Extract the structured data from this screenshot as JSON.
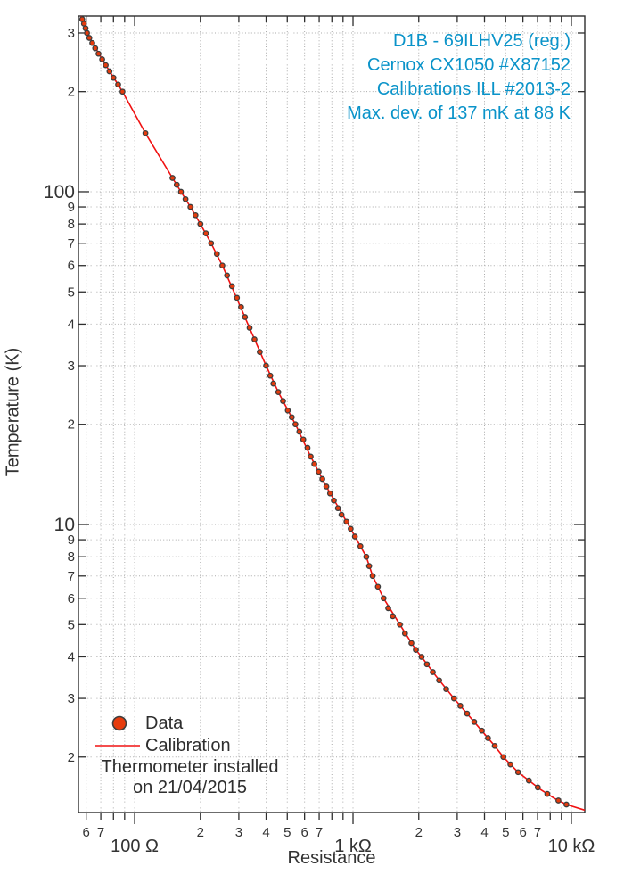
{
  "title_block": {
    "color": "#0a93c9",
    "lines": [
      "D1B - 69ILHV25 (reg.)",
      "Cernox CX1050 #X87152",
      "Calibrations ILL #2013-2",
      "Max. dev. of 137 mK at 88 K"
    ]
  },
  "axes": {
    "x_label": "Resistance",
    "y_label": "Temperature (K)"
  },
  "legend": {
    "data_label": "Data",
    "calibration_label": "Calibration",
    "note_line1": "Thermometer installed",
    "note_line2": "on 21/04/2015"
  },
  "chart_data": {
    "type": "scatter",
    "xscale": "log",
    "yscale": "log",
    "xlabel": "Resistance",
    "ylabel": "Temperature (K)",
    "xunit": "Ω",
    "yunit": "K",
    "xlim_ohm": [
      55.3,
      11515
    ],
    "ylim_K": [
      1.362,
      337.3
    ],
    "grid": "dotted",
    "grid_color": "#ababab",
    "frame_color": "#2e2e2e",
    "x_ticks": [
      {
        "v": 60,
        "l": "6"
      },
      {
        "v": 70,
        "l": "7"
      },
      {
        "v": 80,
        "l": ""
      },
      {
        "v": 90,
        "l": ""
      },
      {
        "v": 100,
        "l": "100 Ω",
        "major": true
      },
      {
        "v": 200,
        "l": "2"
      },
      {
        "v": 300,
        "l": "3"
      },
      {
        "v": 400,
        "l": "4"
      },
      {
        "v": 500,
        "l": "5"
      },
      {
        "v": 600,
        "l": "6"
      },
      {
        "v": 700,
        "l": "7"
      },
      {
        "v": 800,
        "l": ""
      },
      {
        "v": 900,
        "l": ""
      },
      {
        "v": 1000,
        "l": "1 kΩ",
        "major": true
      },
      {
        "v": 2000,
        "l": "2"
      },
      {
        "v": 3000,
        "l": "3"
      },
      {
        "v": 4000,
        "l": "4"
      },
      {
        "v": 5000,
        "l": "5"
      },
      {
        "v": 6000,
        "l": "6"
      },
      {
        "v": 7000,
        "l": "7"
      },
      {
        "v": 8000,
        "l": ""
      },
      {
        "v": 9000,
        "l": ""
      },
      {
        "v": 10000,
        "l": "10 kΩ",
        "major": true
      }
    ],
    "y_ticks": [
      {
        "v": 300,
        "l": "3"
      },
      {
        "v": 200,
        "l": "2"
      },
      {
        "v": 100,
        "l": "100",
        "major": true
      },
      {
        "v": 90,
        "l": "9"
      },
      {
        "v": 80,
        "l": "8"
      },
      {
        "v": 70,
        "l": "7"
      },
      {
        "v": 60,
        "l": "6"
      },
      {
        "v": 50,
        "l": "5"
      },
      {
        "v": 40,
        "l": "4"
      },
      {
        "v": 30,
        "l": "3"
      },
      {
        "v": 20,
        "l": "2"
      },
      {
        "v": 10,
        "l": "10",
        "major": true
      },
      {
        "v": 9,
        "l": "9"
      },
      {
        "v": 8,
        "l": "8"
      },
      {
        "v": 7,
        "l": "7"
      },
      {
        "v": 6,
        "l": "6"
      },
      {
        "v": 5,
        "l": "5"
      },
      {
        "v": 4,
        "l": "4"
      },
      {
        "v": 3,
        "l": "3"
      },
      {
        "v": 2,
        "l": "2"
      }
    ],
    "series": [
      {
        "name": "Data",
        "style": "markers",
        "marker_color": "#e63b0d",
        "marker_edge_color": "#3d3d3d",
        "points_R_T": [
          [
            57.5,
            330
          ],
          [
            58.6,
            320
          ],
          [
            59.6,
            310
          ],
          [
            60.5,
            300
          ],
          [
            62,
            290
          ],
          [
            64,
            280
          ],
          [
            66,
            270
          ],
          [
            68.3,
            260
          ],
          [
            71,
            250
          ],
          [
            73.7,
            240
          ],
          [
            76.7,
            230
          ],
          [
            80,
            220
          ],
          [
            84,
            210
          ],
          [
            88,
            200
          ],
          [
            112,
            150
          ],
          [
            149,
            110
          ],
          [
            156,
            105
          ],
          [
            163,
            100
          ],
          [
            171,
            95
          ],
          [
            180,
            90
          ],
          [
            190,
            85
          ],
          [
            200,
            80
          ],
          [
            212,
            75
          ],
          [
            224,
            70
          ],
          [
            238,
            65
          ],
          [
            252,
            60
          ],
          [
            265,
            56
          ],
          [
            279,
            52
          ],
          [
            294,
            48
          ],
          [
            307,
            45
          ],
          [
            320,
            42
          ],
          [
            336,
            39
          ],
          [
            354,
            36
          ],
          [
            374,
            33
          ],
          [
            400,
            30
          ],
          [
            418,
            28
          ],
          [
            432,
            26.5
          ],
          [
            455,
            25
          ],
          [
            478,
            23.5
          ],
          [
            503,
            22
          ],
          [
            524,
            21
          ],
          [
            545,
            20
          ],
          [
            568,
            19
          ],
          [
            592,
            18
          ],
          [
            619,
            17
          ],
          [
            640,
            16
          ],
          [
            665,
            15.2
          ],
          [
            696,
            14.4
          ],
          [
            724,
            13.7
          ],
          [
            755,
            13
          ],
          [
            785,
            12.4
          ],
          [
            817,
            11.8
          ],
          [
            853,
            11.2
          ],
          [
            886,
            10.7
          ],
          [
            934,
            10.2
          ],
          [
            976,
            9.7
          ],
          [
            1020,
            9.2
          ],
          [
            1081,
            8.6
          ],
          [
            1150,
            8
          ],
          [
            1185,
            7.5
          ],
          [
            1230,
            7
          ],
          [
            1300,
            6.5
          ],
          [
            1380,
            6
          ],
          [
            1450,
            5.6
          ],
          [
            1520,
            5.3
          ],
          [
            1640,
            5.0
          ],
          [
            1730,
            4.7
          ],
          [
            1850,
            4.4
          ],
          [
            1940,
            4.2
          ],
          [
            2060,
            4.0
          ],
          [
            2180,
            3.8
          ],
          [
            2320,
            3.6
          ],
          [
            2480,
            3.4
          ],
          [
            2670,
            3.2
          ],
          [
            2900,
            3.0
          ],
          [
            3100,
            2.85
          ],
          [
            3330,
            2.7
          ],
          [
            3590,
            2.55
          ],
          [
            3890,
            2.4
          ],
          [
            4150,
            2.28
          ],
          [
            4455,
            2.16
          ],
          [
            4880,
            2.0
          ],
          [
            5260,
            1.9
          ],
          [
            5700,
            1.8
          ],
          [
            6390,
            1.7
          ],
          [
            7020,
            1.62
          ],
          [
            7760,
            1.55
          ],
          [
            8720,
            1.48
          ],
          [
            9490,
            1.44
          ]
        ]
      },
      {
        "name": "Calibration",
        "style": "line",
        "color": "#f01212",
        "anchors_R_T": [
          [
            56.8,
            337
          ],
          [
            57.5,
            330
          ],
          [
            60.5,
            300
          ],
          [
            71,
            250
          ],
          [
            88,
            200
          ],
          [
            112,
            150
          ],
          [
            149,
            110
          ],
          [
            163,
            100
          ],
          [
            180,
            90
          ],
          [
            200,
            80
          ],
          [
            224,
            70
          ],
          [
            252,
            60
          ],
          [
            285,
            50
          ],
          [
            330,
            40
          ],
          [
            400,
            30
          ],
          [
            455,
            25
          ],
          [
            545,
            20
          ],
          [
            640,
            16
          ],
          [
            755,
            13
          ],
          [
            950,
            10
          ],
          [
            1150,
            8
          ],
          [
            1230,
            7
          ],
          [
            1380,
            6
          ],
          [
            1640,
            5
          ],
          [
            1940,
            4.2
          ],
          [
            2060,
            4
          ],
          [
            2400,
            3.5
          ],
          [
            2900,
            3
          ],
          [
            3500,
            2.6
          ],
          [
            4350,
            2.2
          ],
          [
            4880,
            2
          ],
          [
            5700,
            1.8
          ],
          [
            7200,
            1.6
          ],
          [
            8400,
            1.5
          ],
          [
            9490,
            1.44
          ],
          [
            11500,
            1.385
          ]
        ]
      }
    ]
  }
}
